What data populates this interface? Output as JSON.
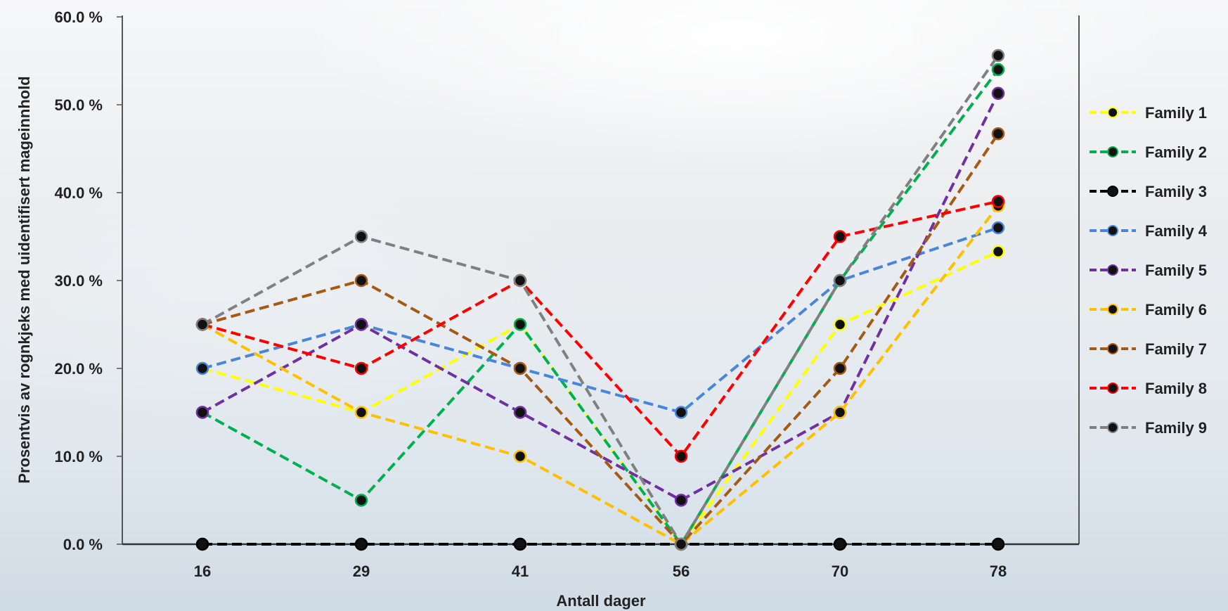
{
  "chart_data": {
    "type": "line",
    "xlabel": "Antall dager",
    "ylabel": "Prosentvis av rognkjeks med uidentifisert mageinnhold",
    "categories": [
      "16",
      "29",
      "41",
      "56",
      "70",
      "78"
    ],
    "ylim": [
      0,
      60
    ],
    "yticks": [
      0,
      10,
      20,
      30,
      40,
      50,
      60
    ],
    "ytick_labels": [
      "0.0 %",
      "10.0 %",
      "20.0 %",
      "30.0 %",
      "40.0 %",
      "50.0 %",
      "60.0 %"
    ],
    "line_style": "dashed",
    "marker": "circle",
    "grid": false,
    "legend_position": "right",
    "series": [
      {
        "name": "Family 1",
        "color": "#ffff00",
        "values": [
          20,
          15,
          25,
          0,
          25,
          33.3
        ]
      },
      {
        "name": "Family 2",
        "color": "#00b050",
        "values": [
          15,
          5,
          25,
          0,
          30,
          54
        ]
      },
      {
        "name": "Family 3",
        "color": "#000000",
        "values": [
          0,
          0,
          0,
          0,
          0,
          0
        ]
      },
      {
        "name": "Family 4",
        "color": "#4a86d8",
        "values": [
          20,
          25,
          20,
          15,
          30,
          36
        ]
      },
      {
        "name": "Family 5",
        "color": "#7030a0",
        "values": [
          15,
          25,
          15,
          5,
          15,
          51.3
        ]
      },
      {
        "name": "Family 6",
        "color": "#ffc000",
        "values": [
          25,
          15,
          10,
          0,
          15,
          38.5
        ]
      },
      {
        "name": "Family 7",
        "color": "#a55a14",
        "values": [
          25,
          30,
          20,
          0,
          20,
          46.7
        ]
      },
      {
        "name": "Family 8",
        "color": "#ff0000",
        "values": [
          25,
          20,
          30,
          10,
          35,
          39
        ]
      },
      {
        "name": "Family 9",
        "color": "#808080",
        "values": [
          25,
          35,
          30,
          0,
          30,
          55.6
        ]
      }
    ]
  }
}
